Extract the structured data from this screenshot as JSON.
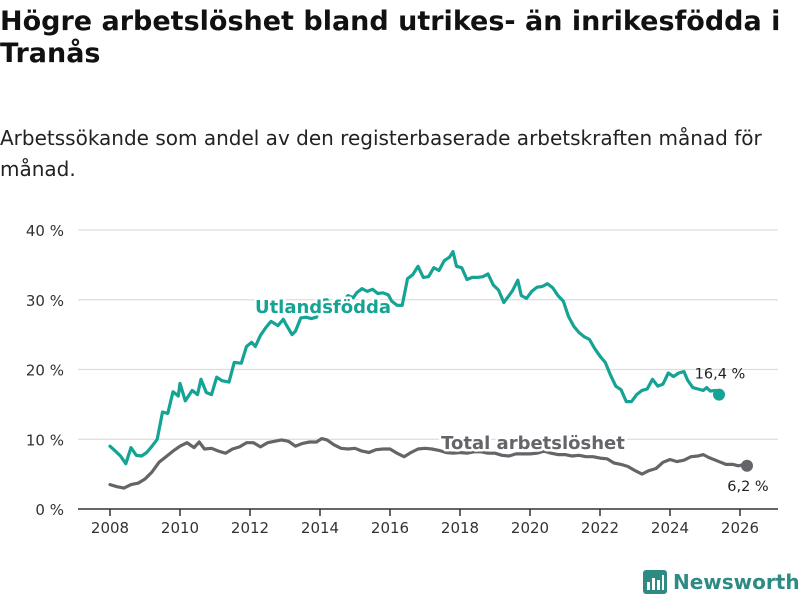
{
  "title": "Högre arbetslöshet bland utrikes- än inrikesfödda i Tranås",
  "subtitle": "Arbetssökande som andel av den registerbaserade arbetskraften månad för månad.",
  "brand": {
    "name": "Newsworthy",
    "icon": "bar-chart-logo-icon",
    "color": "#2e8b83"
  },
  "colors": {
    "utlands": "#14a394",
    "total": "#646469",
    "grid": "#dddddd",
    "axis": "#333333"
  },
  "chart_data": {
    "type": "line",
    "title": "Högre arbetslöshet bland utrikes- än inrikesfödda i Tranås",
    "xlabel": "",
    "ylabel": "",
    "xlim": [
      2007.5,
      2027.1
    ],
    "ylim": [
      0,
      40
    ],
    "yticks": [
      0,
      10,
      20,
      30,
      40
    ],
    "ytick_labels": [
      "0 %",
      "10 %",
      "20 %",
      "30 %",
      "40 %"
    ],
    "xticks": [
      "2008",
      "2010",
      "2012",
      "2014",
      "2016",
      "2018",
      "2020",
      "2022",
      "2024",
      "2026"
    ],
    "grid": true,
    "legend": "inline labels",
    "series": [
      {
        "name": "Utlandsfödda",
        "end_label": "16,4 %",
        "points": [
          [
            2008.0,
            9.0
          ],
          [
            2008.15,
            8.3
          ],
          [
            2008.3,
            7.6
          ],
          [
            2008.45,
            6.5
          ],
          [
            2008.6,
            8.8
          ],
          [
            2008.75,
            7.7
          ],
          [
            2008.9,
            7.6
          ],
          [
            2009.05,
            8.1
          ],
          [
            2009.2,
            9.0
          ],
          [
            2009.35,
            10.0
          ],
          [
            2009.5,
            13.9
          ],
          [
            2009.65,
            13.7
          ],
          [
            2009.8,
            16.8
          ],
          [
            2009.95,
            16.2
          ],
          [
            2010.0,
            18.0
          ],
          [
            2010.15,
            15.5
          ],
          [
            2010.35,
            17.0
          ],
          [
            2010.5,
            16.4
          ],
          [
            2010.6,
            18.6
          ],
          [
            2010.75,
            16.7
          ],
          [
            2010.9,
            16.4
          ],
          [
            2011.05,
            18.9
          ],
          [
            2011.2,
            18.4
          ],
          [
            2011.4,
            18.2
          ],
          [
            2011.55,
            21.0
          ],
          [
            2011.75,
            20.9
          ],
          [
            2011.9,
            23.3
          ],
          [
            2012.05,
            23.9
          ],
          [
            2012.15,
            23.3
          ],
          [
            2012.3,
            24.9
          ],
          [
            2012.45,
            26.0
          ],
          [
            2012.6,
            26.9
          ],
          [
            2012.8,
            26.3
          ],
          [
            2012.95,
            27.2
          ],
          [
            2013.05,
            26.3
          ],
          [
            2013.2,
            25.0
          ],
          [
            2013.3,
            25.5
          ],
          [
            2013.45,
            27.4
          ],
          [
            2013.6,
            27.5
          ],
          [
            2013.75,
            27.3
          ],
          [
            2013.9,
            27.5
          ],
          [
            2014.05,
            29.9
          ],
          [
            2014.2,
            30.0
          ],
          [
            2014.35,
            28.9
          ],
          [
            2014.5,
            29.7
          ],
          [
            2014.65,
            29.8
          ],
          [
            2014.8,
            30.6
          ],
          [
            2014.95,
            30.3
          ],
          [
            2015.05,
            31.0
          ],
          [
            2015.2,
            31.6
          ],
          [
            2015.35,
            31.2
          ],
          [
            2015.5,
            31.5
          ],
          [
            2015.65,
            30.9
          ],
          [
            2015.8,
            31.0
          ],
          [
            2015.95,
            30.7
          ],
          [
            2016.05,
            29.8
          ],
          [
            2016.2,
            29.2
          ],
          [
            2016.35,
            29.2
          ],
          [
            2016.5,
            33.0
          ],
          [
            2016.65,
            33.6
          ],
          [
            2016.8,
            34.8
          ],
          [
            2016.95,
            33.2
          ],
          [
            2017.1,
            33.3
          ],
          [
            2017.25,
            34.6
          ],
          [
            2017.4,
            34.2
          ],
          [
            2017.55,
            35.6
          ],
          [
            2017.7,
            36.1
          ],
          [
            2017.8,
            36.9
          ],
          [
            2017.9,
            34.8
          ],
          [
            2018.05,
            34.6
          ],
          [
            2018.2,
            32.9
          ],
          [
            2018.35,
            33.2
          ],
          [
            2018.5,
            33.2
          ],
          [
            2018.65,
            33.3
          ],
          [
            2018.8,
            33.7
          ],
          [
            2018.95,
            32.1
          ],
          [
            2019.1,
            31.4
          ],
          [
            2019.25,
            29.6
          ],
          [
            2019.4,
            30.6
          ],
          [
            2019.5,
            31.3
          ],
          [
            2019.65,
            32.8
          ],
          [
            2019.75,
            30.6
          ],
          [
            2019.9,
            30.2
          ],
          [
            2020.05,
            31.2
          ],
          [
            2020.2,
            31.8
          ],
          [
            2020.35,
            31.9
          ],
          [
            2020.5,
            32.3
          ],
          [
            2020.65,
            31.7
          ],
          [
            2020.8,
            30.6
          ],
          [
            2020.95,
            29.8
          ],
          [
            2021.1,
            27.6
          ],
          [
            2021.25,
            26.2
          ],
          [
            2021.4,
            25.3
          ],
          [
            2021.55,
            24.7
          ],
          [
            2021.7,
            24.3
          ],
          [
            2021.85,
            23.0
          ],
          [
            2022.0,
            21.9
          ],
          [
            2022.15,
            21.0
          ],
          [
            2022.3,
            19.2
          ],
          [
            2022.45,
            17.6
          ],
          [
            2022.6,
            17.1
          ],
          [
            2022.75,
            15.4
          ],
          [
            2022.9,
            15.4
          ],
          [
            2023.05,
            16.4
          ],
          [
            2023.2,
            17.0
          ],
          [
            2023.35,
            17.2
          ],
          [
            2023.5,
            18.6
          ],
          [
            2023.65,
            17.6
          ],
          [
            2023.8,
            17.9
          ],
          [
            2023.95,
            19.5
          ],
          [
            2024.1,
            19.0
          ],
          [
            2024.25,
            19.5
          ],
          [
            2024.4,
            19.7
          ],
          [
            2024.5,
            18.5
          ],
          [
            2024.65,
            17.4
          ],
          [
            2024.8,
            17.2
          ],
          [
            2024.95,
            17.0
          ],
          [
            2025.05,
            17.4
          ],
          [
            2025.15,
            16.9
          ],
          [
            2025.3,
            17.0
          ],
          [
            2025.4,
            16.4
          ]
        ]
      },
      {
        "name": "Total arbetslöshet",
        "end_label": "6,2 %",
        "points": [
          [
            2008.0,
            3.5
          ],
          [
            2008.2,
            3.2
          ],
          [
            2008.4,
            3.0
          ],
          [
            2008.6,
            3.5
          ],
          [
            2008.8,
            3.7
          ],
          [
            2009.0,
            4.3
          ],
          [
            2009.2,
            5.3
          ],
          [
            2009.4,
            6.7
          ],
          [
            2009.6,
            7.5
          ],
          [
            2009.8,
            8.3
          ],
          [
            2010.0,
            9.0
          ],
          [
            2010.2,
            9.5
          ],
          [
            2010.4,
            8.8
          ],
          [
            2010.55,
            9.6
          ],
          [
            2010.7,
            8.6
          ],
          [
            2010.9,
            8.7
          ],
          [
            2011.1,
            8.3
          ],
          [
            2011.3,
            8.0
          ],
          [
            2011.5,
            8.6
          ],
          [
            2011.7,
            8.9
          ],
          [
            2011.9,
            9.5
          ],
          [
            2012.1,
            9.5
          ],
          [
            2012.3,
            8.9
          ],
          [
            2012.5,
            9.5
          ],
          [
            2012.7,
            9.7
          ],
          [
            2012.9,
            9.9
          ],
          [
            2013.1,
            9.7
          ],
          [
            2013.3,
            9.0
          ],
          [
            2013.5,
            9.4
          ],
          [
            2013.7,
            9.6
          ],
          [
            2013.9,
            9.6
          ],
          [
            2014.05,
            10.1
          ],
          [
            2014.2,
            9.9
          ],
          [
            2014.4,
            9.2
          ],
          [
            2014.6,
            8.7
          ],
          [
            2014.8,
            8.6
          ],
          [
            2015.0,
            8.7
          ],
          [
            2015.2,
            8.3
          ],
          [
            2015.4,
            8.1
          ],
          [
            2015.6,
            8.5
          ],
          [
            2015.8,
            8.6
          ],
          [
            2016.0,
            8.6
          ],
          [
            2016.2,
            8.0
          ],
          [
            2016.4,
            7.5
          ],
          [
            2016.6,
            8.1
          ],
          [
            2016.8,
            8.6
          ],
          [
            2017.0,
            8.7
          ],
          [
            2017.2,
            8.6
          ],
          [
            2017.4,
            8.4
          ],
          [
            2017.6,
            8.1
          ],
          [
            2017.8,
            8.0
          ],
          [
            2018.0,
            8.1
          ],
          [
            2018.2,
            8.0
          ],
          [
            2018.4,
            8.2
          ],
          [
            2018.6,
            8.2
          ],
          [
            2018.8,
            8.0
          ],
          [
            2019.0,
            8.0
          ],
          [
            2019.2,
            7.7
          ],
          [
            2019.4,
            7.6
          ],
          [
            2019.6,
            7.9
          ],
          [
            2019.8,
            7.9
          ],
          [
            2020.0,
            7.9
          ],
          [
            2020.2,
            8.0
          ],
          [
            2020.4,
            8.3
          ],
          [
            2020.6,
            8.0
          ],
          [
            2020.8,
            7.8
          ],
          [
            2021.0,
            7.8
          ],
          [
            2021.2,
            7.6
          ],
          [
            2021.4,
            7.7
          ],
          [
            2021.6,
            7.5
          ],
          [
            2021.8,
            7.5
          ],
          [
            2022.0,
            7.3
          ],
          [
            2022.2,
            7.2
          ],
          [
            2022.4,
            6.6
          ],
          [
            2022.6,
            6.4
          ],
          [
            2022.8,
            6.1
          ],
          [
            2023.0,
            5.5
          ],
          [
            2023.2,
            5.0
          ],
          [
            2023.4,
            5.5
          ],
          [
            2023.6,
            5.8
          ],
          [
            2023.8,
            6.7
          ],
          [
            2024.0,
            7.1
          ],
          [
            2024.2,
            6.8
          ],
          [
            2024.4,
            7.0
          ],
          [
            2024.6,
            7.5
          ],
          [
            2024.8,
            7.6
          ],
          [
            2024.95,
            7.8
          ],
          [
            2025.1,
            7.4
          ],
          [
            2025.3,
            7.0
          ],
          [
            2025.45,
            6.7
          ],
          [
            2025.6,
            6.4
          ],
          [
            2025.8,
            6.4
          ],
          [
            2025.95,
            6.2
          ],
          [
            2026.05,
            6.3
          ],
          [
            2026.2,
            6.2
          ]
        ]
      }
    ],
    "annotations": [
      {
        "text": "Utlandsfödda",
        "series": "Utlandsfödda"
      },
      {
        "text": "Total arbetslöshet",
        "series": "Total arbetslöshet"
      }
    ]
  }
}
